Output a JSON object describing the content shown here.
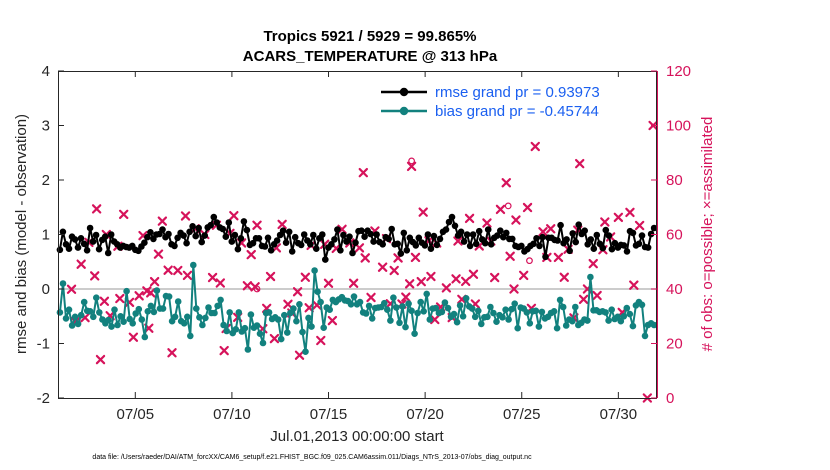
{
  "chart_data": {
    "type": "line",
    "title": "Tropics 5921 / 5929 = 99.865%",
    "subtitle": "ACARS_TEMPERATURE @ 313 hPa",
    "xlabel": "Jul.01,2013 00:00:00 start",
    "ylabel": "rmse and bias (model - observation)",
    "ylabel_right": "# of obs: o=possible; ×=assimilated",
    "footnote": "data file: /Users/raeder/DAI/ATM_forcXX/CAM6_setup/f.e21.FHIST_BGC.f09_025.CAM6assim.011/Diags_NTrS_2013-07/obs_diag_output.nc",
    "x_range": [
      1,
      32
    ],
    "ylim": [
      -2,
      4
    ],
    "ylim_right": [
      0,
      120
    ],
    "x_tick_values": [
      5,
      10,
      15,
      20,
      25,
      30
    ],
    "x_tick_labels": [
      "07/05",
      "07/10",
      "07/15",
      "07/20",
      "07/25",
      "07/30"
    ],
    "y_tick_labels": [
      "-2",
      "-1",
      "0",
      "1",
      "2",
      "3",
      "4"
    ],
    "y_right_tick_labels": [
      "0",
      "20",
      "40",
      "60",
      "80",
      "100",
      "120"
    ],
    "legend_position": "top-right",
    "series": [
      {
        "name": "rmse grand pr = 0.93973",
        "color": "#000000",
        "values": [
          0.72,
          1.05,
          0.82,
          0.74,
          0.96,
          0.91,
          0.76,
          0.93,
          0.83,
          0.71,
          1.12,
          0.87,
          0.99,
          0.73,
          0.9,
          0.96,
          0.66,
          1.0,
          0.87,
          0.82,
          0.76,
          0.79,
          0.77,
          0.76,
          0.79,
          0.72,
          0.7,
          0.78,
          0.85,
          0.95,
          1.04,
          0.92,
          1.0,
          1.01,
          1.09,
          0.95,
          1.01,
          0.82,
          0.79,
          0.94,
          1.03,
          0.98,
          0.84,
          1.05,
          1.15,
          0.97,
          1.12,
          0.86,
          0.98,
          1.13,
          1.17,
          1.32,
          1.22,
          1.13,
          1.1,
          0.96,
          1.22,
          0.87,
          0.99,
          0.73,
          0.93,
          1.24,
          1.08,
          0.81,
          0.84,
          0.93,
          0.93,
          0.79,
          0.78,
          0.94,
          0.71,
          0.82,
          0.89,
          0.99,
          1.07,
          0.85,
          1.05,
          0.69,
          0.95,
          0.84,
          0.81,
          1.0,
          0.89,
          0.82,
          0.99,
          0.74,
          0.93,
          1.0,
          0.54,
          0.76,
          0.82,
          0.91,
          1.09,
          0.71,
          0.99,
          0.87,
          0.96,
          0.66,
          0.85,
          1.06,
          1.07,
          0.96,
          1.07,
          1.01,
          0.87,
          1.0,
          0.86,
          0.82,
          0.95,
          0.92,
          1.1,
          0.82,
          0.83,
          0.65,
          1.03,
          0.71,
          0.94,
          0.86,
          0.8,
          0.94,
          0.85,
          0.8,
          1.0,
          0.74,
          0.97,
          0.81,
          0.92,
          1.05,
          1.09,
          1.23,
          1.32,
          1.16,
          0.98,
          1.05,
          0.87,
          1.0,
          0.79,
          1.0,
          0.83,
          1.06,
          0.91,
          0.84,
          1.09,
          0.82,
          0.94,
          0.98,
          1.07,
          0.95,
          1.03,
          0.92,
          0.92,
          0.79,
          0.77,
          0.79,
          0.69,
          0.73,
          0.79,
          0.83,
          0.93,
          0.79,
          0.95,
          0.59,
          0.94,
          0.94,
          0.9,
          0.89,
          1.17,
          0.84,
          0.91,
          0.7,
          1.02,
          0.86,
          1.18,
          1.01,
          1.07,
          0.82,
          0.91,
          0.74,
          0.99,
          0.83,
          0.75,
          1.08,
          0.98,
          0.73,
          0.84,
          0.76,
          0.81,
          0.8,
          0.69,
          1.06,
          1.03,
          0.8,
          0.83,
          0.98,
          0.77,
          0.76,
          1.01,
          1.12
        ]
      },
      {
        "name": "bias grand pr = -0.45744",
        "color": "#12817e",
        "values": [
          -0.43,
          0.1,
          -0.54,
          -0.38,
          -0.67,
          -0.51,
          -0.64,
          -0.48,
          -0.24,
          -0.4,
          -0.41,
          -0.51,
          -0.16,
          -0.43,
          -0.56,
          -0.63,
          -0.57,
          -0.69,
          -0.38,
          -0.66,
          -0.5,
          -0.6,
          -0.04,
          -0.55,
          -0.63,
          -0.45,
          -0.37,
          -0.56,
          -0.88,
          -0.41,
          -0.31,
          -0.42,
          -0.03,
          -0.36,
          -0.36,
          -0.13,
          -0.14,
          -0.59,
          -0.51,
          -0.23,
          -0.59,
          -0.63,
          -0.51,
          -0.86,
          0.44,
          -0.36,
          -0.52,
          -0.66,
          -0.53,
          -0.34,
          -0.44,
          -0.44,
          -0.31,
          -0.2,
          -0.66,
          -0.77,
          -0.43,
          -0.81,
          -0.74,
          -0.43,
          -0.78,
          -0.72,
          -1.11,
          -0.47,
          -0.71,
          -0.67,
          -0.82,
          -0.99,
          -0.44,
          -0.43,
          -0.55,
          -0.52,
          -0.56,
          -0.92,
          -0.48,
          -0.8,
          -0.44,
          -0.36,
          -0.59,
          -0.28,
          -0.79,
          -1.15,
          -0.53,
          -0.69,
          0.34,
          -0.05,
          -0.24,
          -0.71,
          -0.34,
          -0.38,
          -0.2,
          -0.24,
          -0.19,
          -0.15,
          -0.21,
          -0.22,
          -0.28,
          -0.14,
          -0.28,
          -0.24,
          -0.43,
          -0.45,
          -0.31,
          -0.54,
          -0.35,
          -0.34,
          -0.33,
          -0.26,
          -0.38,
          -0.58,
          -0.16,
          -0.34,
          -0.62,
          -0.32,
          -0.7,
          -0.27,
          -0.4,
          -0.82,
          -0.44,
          -0.24,
          -0.41,
          -0.09,
          -0.56,
          -0.36,
          -0.35,
          -0.44,
          -0.42,
          -0.25,
          -0.35,
          -0.51,
          -0.46,
          -0.61,
          -0.3,
          -0.5,
          -0.17,
          -0.32,
          -0.36,
          -0.51,
          -0.4,
          -0.64,
          -0.52,
          -0.51,
          -0.33,
          -0.44,
          -0.6,
          -0.48,
          -0.52,
          -0.38,
          -0.56,
          -0.37,
          -0.27,
          -0.72,
          -0.34,
          -0.36,
          -0.43,
          -0.63,
          -0.41,
          -0.4,
          -0.69,
          -0.42,
          -0.54,
          -0.51,
          -0.44,
          -0.41,
          -0.72,
          -0.2,
          -0.33,
          -0.67,
          -0.56,
          -0.59,
          -0.33,
          -0.66,
          -0.62,
          -0.56,
          -0.58,
          0.22,
          -0.39,
          -0.39,
          -0.42,
          -0.41,
          -0.43,
          -0.58,
          -0.38,
          -0.55,
          -0.51,
          -0.59,
          -0.5,
          -0.35,
          -0.46,
          -0.68,
          -0.3,
          -0.24,
          -0.29,
          -0.86,
          -0.66,
          -0.63,
          -0.66
        ]
      }
    ],
    "obs_assimilated": [
      [
        1.7,
        39.9
      ],
      [
        1.9,
        28.0
      ],
      [
        2.2,
        49.1
      ],
      [
        2.4,
        29.5
      ],
      [
        2.6,
        57.1
      ],
      [
        2.9,
        44.8
      ],
      [
        3.0,
        69.4
      ],
      [
        3.2,
        14.1
      ],
      [
        3.4,
        35.5
      ],
      [
        3.5,
        60.0
      ],
      [
        3.7,
        30.2
      ],
      [
        4.1,
        55.7
      ],
      [
        4.2,
        36.5
      ],
      [
        4.4,
        67.4
      ],
      [
        4.7,
        35.1
      ],
      [
        4.9,
        22.3
      ],
      [
        5.2,
        37.5
      ],
      [
        5.4,
        59.6
      ],
      [
        5.6,
        39.3
      ],
      [
        5.7,
        25.6
      ],
      [
        5.8,
        38.6
      ],
      [
        6.0,
        42.7
      ],
      [
        6.2,
        52.8
      ],
      [
        6.4,
        64.9
      ],
      [
        6.7,
        46.9
      ],
      [
        6.9,
        16.6
      ],
      [
        7.2,
        46.8
      ],
      [
        7.6,
        66.8
      ],
      [
        7.7,
        45.0
      ],
      [
        8.1,
        62.1
      ],
      [
        8.6,
        60.0
      ],
      [
        9.0,
        44.2
      ],
      [
        9.2,
        63.4
      ],
      [
        9.4,
        42.2
      ],
      [
        9.6,
        17.4
      ],
      [
        9.7,
        25.5
      ],
      [
        9.9,
        60.4
      ],
      [
        10.1,
        66.9
      ],
      [
        10.3,
        29.6
      ],
      [
        10.5,
        56.9
      ],
      [
        10.8,
        41.2
      ],
      [
        11.0,
        52.6
      ],
      [
        11.2,
        40.8
      ],
      [
        11.3,
        63.4
      ],
      [
        11.6,
        25.4
      ],
      [
        11.8,
        32.9
      ],
      [
        12.0,
        44.6
      ],
      [
        12.2,
        21.8
      ],
      [
        12.3,
        55.1
      ],
      [
        12.6,
        63.7
      ],
      [
        12.9,
        34.4
      ],
      [
        13.1,
        31.2
      ],
      [
        13.4,
        39.0
      ],
      [
        13.5,
        15.7
      ],
      [
        13.8,
        44.3
      ],
      [
        14.0,
        33.1
      ],
      [
        14.1,
        56.0
      ],
      [
        14.4,
        34.1
      ],
      [
        14.6,
        21.1
      ],
      [
        14.8,
        56.4
      ],
      [
        15.0,
        42.1
      ],
      [
        15.2,
        28.4
      ],
      [
        15.4,
        54.9
      ],
      [
        15.7,
        61.9
      ],
      [
        16.1,
        56.9
      ],
      [
        16.3,
        42.1
      ],
      [
        16.6,
        55.1
      ],
      [
        16.8,
        82.7
      ],
      [
        16.9,
        51.4
      ],
      [
        17.2,
        36.9
      ],
      [
        17.4,
        61.3
      ],
      [
        17.8,
        48.0
      ],
      [
        18.0,
        58.5
      ],
      [
        18.2,
        34.6
      ],
      [
        18.4,
        46.8
      ],
      [
        18.6,
        51.4
      ],
      [
        18.8,
        34.5
      ],
      [
        19.0,
        37.0
      ],
      [
        19.2,
        41.9
      ],
      [
        19.3,
        85.0
      ],
      [
        19.5,
        51.6
      ],
      [
        19.8,
        42.7
      ],
      [
        19.9,
        68.2
      ],
      [
        20.2,
        57.7
      ],
      [
        20.3,
        44.6
      ],
      [
        20.5,
        28.8
      ],
      [
        20.6,
        56.9
      ],
      [
        20.8,
        33.4
      ],
      [
        21.1,
        40.4
      ],
      [
        21.4,
        29.5
      ],
      [
        21.6,
        43.7
      ],
      [
        21.7,
        57.6
      ],
      [
        21.9,
        36.2
      ],
      [
        22.1,
        42.8
      ],
      [
        22.3,
        65.9
      ],
      [
        22.5,
        45.4
      ],
      [
        22.6,
        34.5
      ],
      [
        22.8,
        55.8
      ],
      [
        23.2,
        64.2
      ],
      [
        23.4,
        57.6
      ],
      [
        23.6,
        44.2
      ],
      [
        23.9,
        69.2
      ],
      [
        24.2,
        79.0
      ],
      [
        24.4,
        52.0
      ],
      [
        24.6,
        40.0
      ],
      [
        24.7,
        65.3
      ],
      [
        25.1,
        45.0
      ],
      [
        25.3,
        69.9
      ],
      [
        25.5,
        32.9
      ],
      [
        25.7,
        92.3
      ],
      [
        26.1,
        61.0
      ],
      [
        26.3,
        51.6
      ],
      [
        26.5,
        62.1
      ],
      [
        26.9,
        51.6
      ],
      [
        27.2,
        44.3
      ],
      [
        27.4,
        54.6
      ],
      [
        27.7,
        29.4
      ],
      [
        27.9,
        61.6
      ],
      [
        28.0,
        86.0
      ],
      [
        28.2,
        36.2
      ],
      [
        28.4,
        40.0
      ],
      [
        28.7,
        49.3
      ],
      [
        28.9,
        37.6
      ],
      [
        29.2,
        54.4
      ],
      [
        29.3,
        64.6
      ],
      [
        29.6,
        59.1
      ],
      [
        30.0,
        66.3
      ],
      [
        30.2,
        31.4
      ],
      [
        30.6,
        68.1
      ],
      [
        30.8,
        41.4
      ],
      [
        31.1,
        63.3
      ],
      [
        31.5,
        0.0
      ],
      [
        31.8,
        100.0
      ]
    ],
    "obs_possible_only": [
      [
        19.3,
        87.0
      ],
      [
        24.3,
        70.5
      ],
      [
        25.4,
        50.4
      ],
      [
        11.3,
        40.0
      ]
    ]
  }
}
